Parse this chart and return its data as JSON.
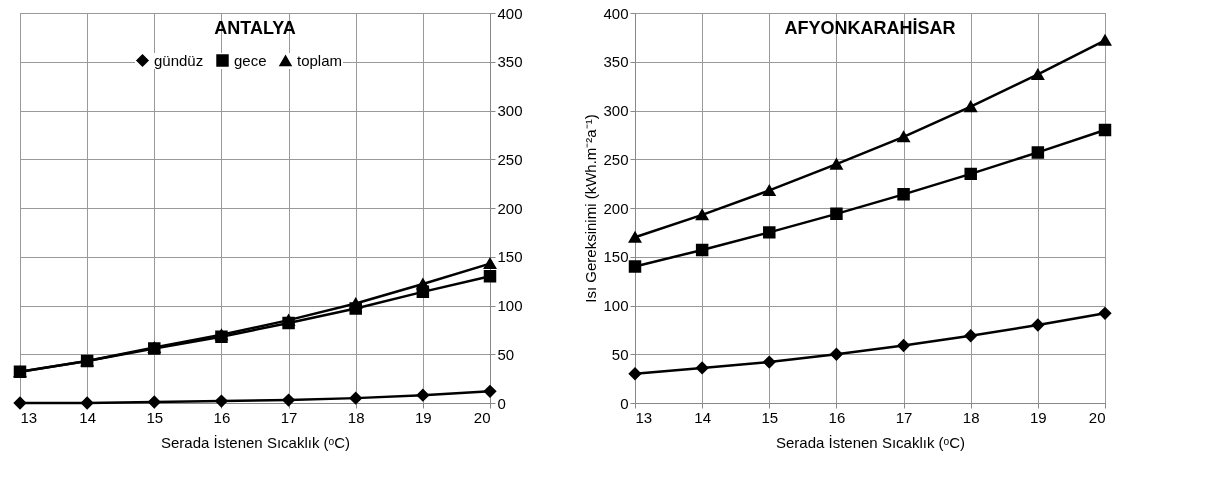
{
  "chart_data": [
    {
      "type": "line",
      "title": "ANTALYA",
      "xlabel": "Serada İstenen Sıcaklık (ᵒC)",
      "x": [
        13,
        14,
        15,
        16,
        17,
        18,
        19,
        20
      ],
      "xlim": [
        13,
        20
      ],
      "xticks": [
        13,
        14,
        15,
        16,
        17,
        18,
        19,
        20
      ],
      "ylim": [
        0,
        400
      ],
      "yticks": [
        0,
        50,
        100,
        150,
        200,
        250,
        300,
        350,
        400
      ],
      "grid": true,
      "legend": "top",
      "series": [
        {
          "name": "gündüz",
          "color": "#000000",
          "marker": "diamond",
          "values": [
            0,
            0,
            1,
            2,
            3,
            5,
            8,
            12
          ]
        },
        {
          "name": "gece",
          "color": "#000000",
          "marker": "square",
          "values": [
            32,
            43,
            56,
            68,
            82,
            97,
            114,
            130
          ]
        },
        {
          "name": "toplam",
          "color": "#000000",
          "marker": "triangle",
          "values": [
            32,
            43,
            57,
            70,
            85,
            102,
            122,
            143
          ]
        }
      ]
    },
    {
      "type": "line",
      "title": "AFYONKARAHİSAR",
      "xlabel": "Serada İstenen Sıcaklık (ᵒC)",
      "ylabel": "Isı Gereksinimi (kWh.m⁻²a⁻¹)",
      "x": [
        13,
        14,
        15,
        16,
        17,
        18,
        19,
        20
      ],
      "xlim": [
        13,
        20
      ],
      "xticks": [
        13,
        14,
        15,
        16,
        17,
        18,
        19,
        20
      ],
      "ylim": [
        0,
        400
      ],
      "yticks": [
        0,
        50,
        100,
        150,
        200,
        250,
        300,
        350,
        400
      ],
      "grid": true,
      "series": [
        {
          "color": "#000000",
          "marker": "diamond",
          "values": [
            30,
            36,
            42,
            50,
            59,
            69,
            80,
            92
          ]
        },
        {
          "color": "#000000",
          "marker": "square",
          "values": [
            140,
            157,
            175,
            194,
            214,
            235,
            257,
            280
          ]
        },
        {
          "color": "#000000",
          "marker": "triangle",
          "values": [
            170,
            193,
            218,
            245,
            273,
            304,
            337,
            372
          ]
        }
      ]
    }
  ]
}
